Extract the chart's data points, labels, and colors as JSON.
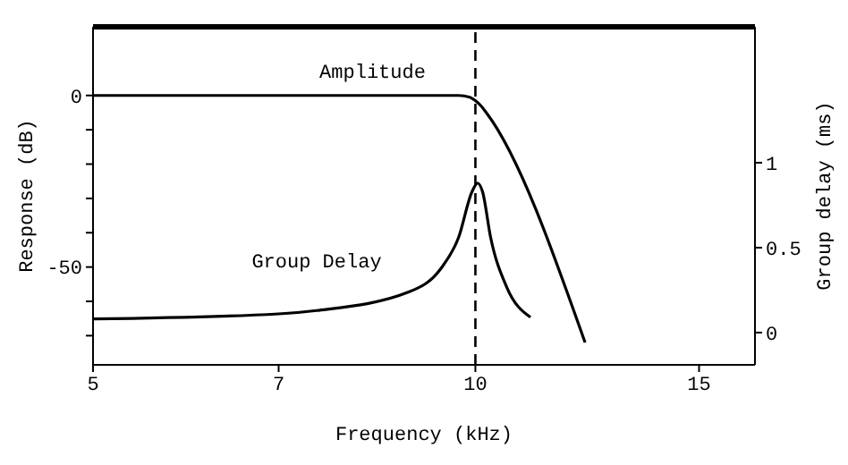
{
  "chart_data": {
    "type": "line",
    "xlabel": "Frequency (kHz)",
    "ylabel": "Response (dB)",
    "y2label": "Group delay (ms)",
    "log": "x",
    "xlim": [
      5,
      16.6
    ],
    "xticks": [
      5,
      7,
      10,
      15
    ],
    "ylim": [
      -78.5,
      20
    ],
    "yticks": [
      0,
      -50,
      {
        "value": -10,
        "label": null
      },
      {
        "value": -20,
        "label": null
      },
      {
        "value": -30,
        "label": null
      },
      {
        "value": -40,
        "label": null
      },
      {
        "value": -60,
        "label": null
      },
      {
        "value": -70,
        "label": null
      }
    ],
    "y2lim": [
      -0.19,
      1.8
    ],
    "y2ticks": [
      0,
      0.5,
      1
    ],
    "grid": false,
    "legend": false,
    "marker": "none",
    "line_style": "solid",
    "series": [
      {
        "name": "Amplitude",
        "color": "#000000",
        "x": [
          5,
          8.3,
          9.7,
          9.9,
          10,
          10.1,
          10.2,
          12.2
        ],
        "values": [
          0,
          0,
          0,
          -0.5,
          -1.5,
          -3,
          -5,
          -72
        ]
      },
      {
        "name": "Group Delay",
        "color": "#000000",
        "axis": "y2",
        "x": [
          5,
          7,
          7.5,
          8.87,
          9.4,
          9.7,
          9.94,
          10.04,
          10.13,
          10.28,
          10.58,
          11.05
        ],
        "values": [
          0.08,
          0.11,
          0.13,
          0.24,
          0.38,
          0.56,
          0.83,
          0.88,
          0.83,
          0.56,
          0.27,
          0.09
        ]
      }
    ],
    "ref_lines": [
      {
        "axis": "x",
        "value": 10,
        "label": null,
        "color": "#000000",
        "line_style": "dashed"
      }
    ]
  }
}
